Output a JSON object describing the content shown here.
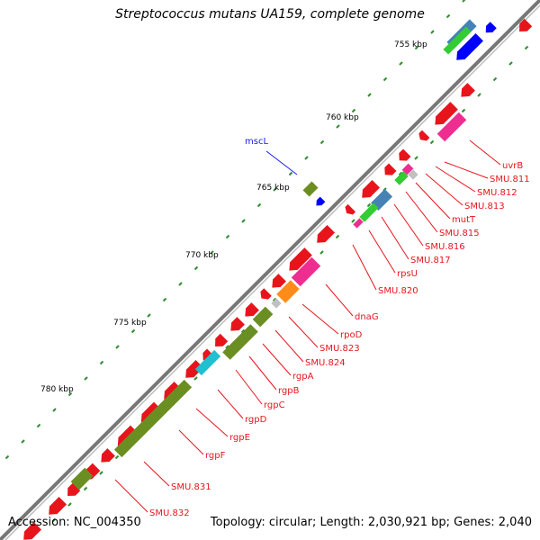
{
  "title": "Streptococcus mutans UA159, complete genome",
  "accession": "Accession: NC_004350",
  "topology": "Topology: circular; Length: 2,030,921 bp; Genes: 2,040",
  "colors": {
    "backbone": "#888888",
    "forward_gene": "#e8141c",
    "tick": "#2f8f2f",
    "label_red": "#e8141c",
    "label_blue": "#1a1aff",
    "cog_olive": "#6b8e23",
    "cog_pink": "#ee2d91",
    "cog_orange": "#ff8c1a",
    "cog_blue": "#0000ff",
    "cog_steel": "#4682b4",
    "cog_green": "#33cc33",
    "cog_cyan": "#20c0d0",
    "cog_gray": "#c0c0c0"
  },
  "kbp_labels": [
    "755 kbp",
    "760 kbp",
    "765 kbp",
    "770 kbp",
    "775 kbp",
    "780 kbp"
  ],
  "gene_labels": [
    {
      "text": "mscL",
      "color": "blue"
    },
    {
      "text": "uvrB",
      "color": "red"
    },
    {
      "text": "SMU.811",
      "color": "red"
    },
    {
      "text": "SMU.812",
      "color": "red"
    },
    {
      "text": "SMU.813",
      "color": "red"
    },
    {
      "text": "mutT",
      "color": "red"
    },
    {
      "text": "SMU.815",
      "color": "red"
    },
    {
      "text": "SMU.816",
      "color": "red"
    },
    {
      "text": "SMU.817",
      "color": "red"
    },
    {
      "text": "rpsU",
      "color": "red"
    },
    {
      "text": "SMU.820",
      "color": "red"
    },
    {
      "text": "dnaG",
      "color": "red"
    },
    {
      "text": "rpoD",
      "color": "red"
    },
    {
      "text": "SMU.823",
      "color": "red"
    },
    {
      "text": "SMU.824",
      "color": "red"
    },
    {
      "text": "rgpA",
      "color": "red"
    },
    {
      "text": "rgpB",
      "color": "red"
    },
    {
      "text": "rgpC",
      "color": "red"
    },
    {
      "text": "rgpD",
      "color": "red"
    },
    {
      "text": "rgpE",
      "color": "red"
    },
    {
      "text": "rgpF",
      "color": "red"
    },
    {
      "text": "SMU.831",
      "color": "red"
    },
    {
      "text": "SMU.832",
      "color": "red"
    }
  ]
}
